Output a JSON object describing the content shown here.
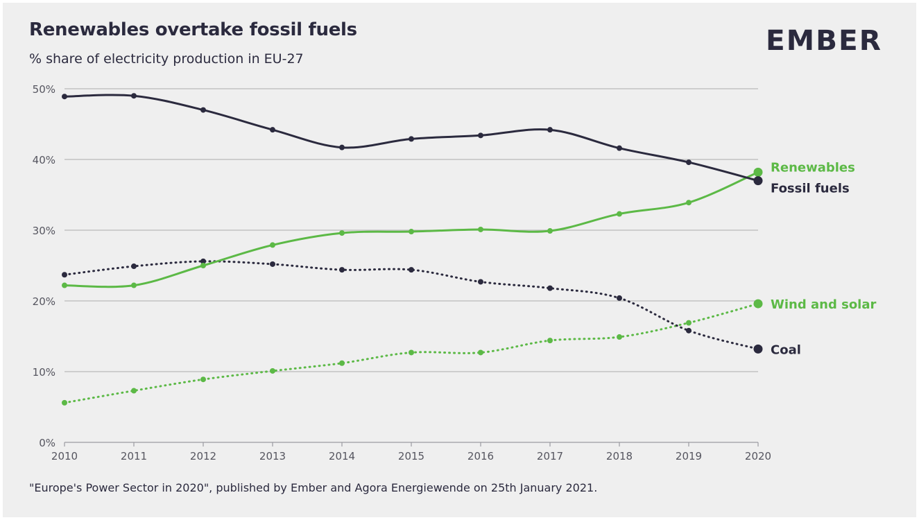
{
  "header": {
    "title": "Renewables overtake fossil fuels",
    "subtitle": "% share of electricity production in EU-27",
    "logo_text": "EMBER"
  },
  "footer": {
    "source": "\"Europe's Power Sector in 2020\", published by Ember and Agora Energiewende on 25th January 2021."
  },
  "colors": {
    "dark": "#2b2a3e",
    "green": "#5cb946",
    "grid": "#b9b9b9",
    "background": "#efefef"
  },
  "chart_data": {
    "type": "line",
    "title": "Renewables overtake fossil fuels",
    "subtitle": "% share of electricity production in EU-27",
    "xlabel": "",
    "ylabel": "",
    "x": [
      2010,
      2011,
      2012,
      2013,
      2014,
      2015,
      2016,
      2017,
      2018,
      2019,
      2020
    ],
    "ylim": [
      0,
      50
    ],
    "yticks": [
      0,
      10,
      20,
      30,
      40,
      50
    ],
    "ytick_labels": [
      "0%",
      "10%",
      "20%",
      "30%",
      "40%",
      "50%"
    ],
    "grid": true,
    "legend": "end-of-line labels on right",
    "series": [
      {
        "name": "Fossil fuels",
        "color": "#2b2a3e",
        "style": "solid",
        "values": [
          48.9,
          49.0,
          47.0,
          44.2,
          41.7,
          42.9,
          43.4,
          44.2,
          41.6,
          39.6,
          37.0
        ]
      },
      {
        "name": "Renewables",
        "color": "#5cb946",
        "style": "solid",
        "values": [
          22.2,
          22.2,
          25.0,
          27.9,
          29.6,
          29.8,
          30.1,
          29.9,
          32.3,
          33.9,
          38.2
        ]
      },
      {
        "name": "Coal",
        "color": "#2b2a3e",
        "style": "dotted",
        "values": [
          23.7,
          24.9,
          25.6,
          25.2,
          24.4,
          24.4,
          22.7,
          21.8,
          20.4,
          15.8,
          13.2
        ]
      },
      {
        "name": "Wind and solar",
        "color": "#5cb946",
        "style": "dotted",
        "values": [
          5.6,
          7.3,
          8.9,
          10.1,
          11.2,
          12.7,
          12.7,
          14.4,
          14.9,
          16.9,
          19.6
        ]
      }
    ]
  }
}
